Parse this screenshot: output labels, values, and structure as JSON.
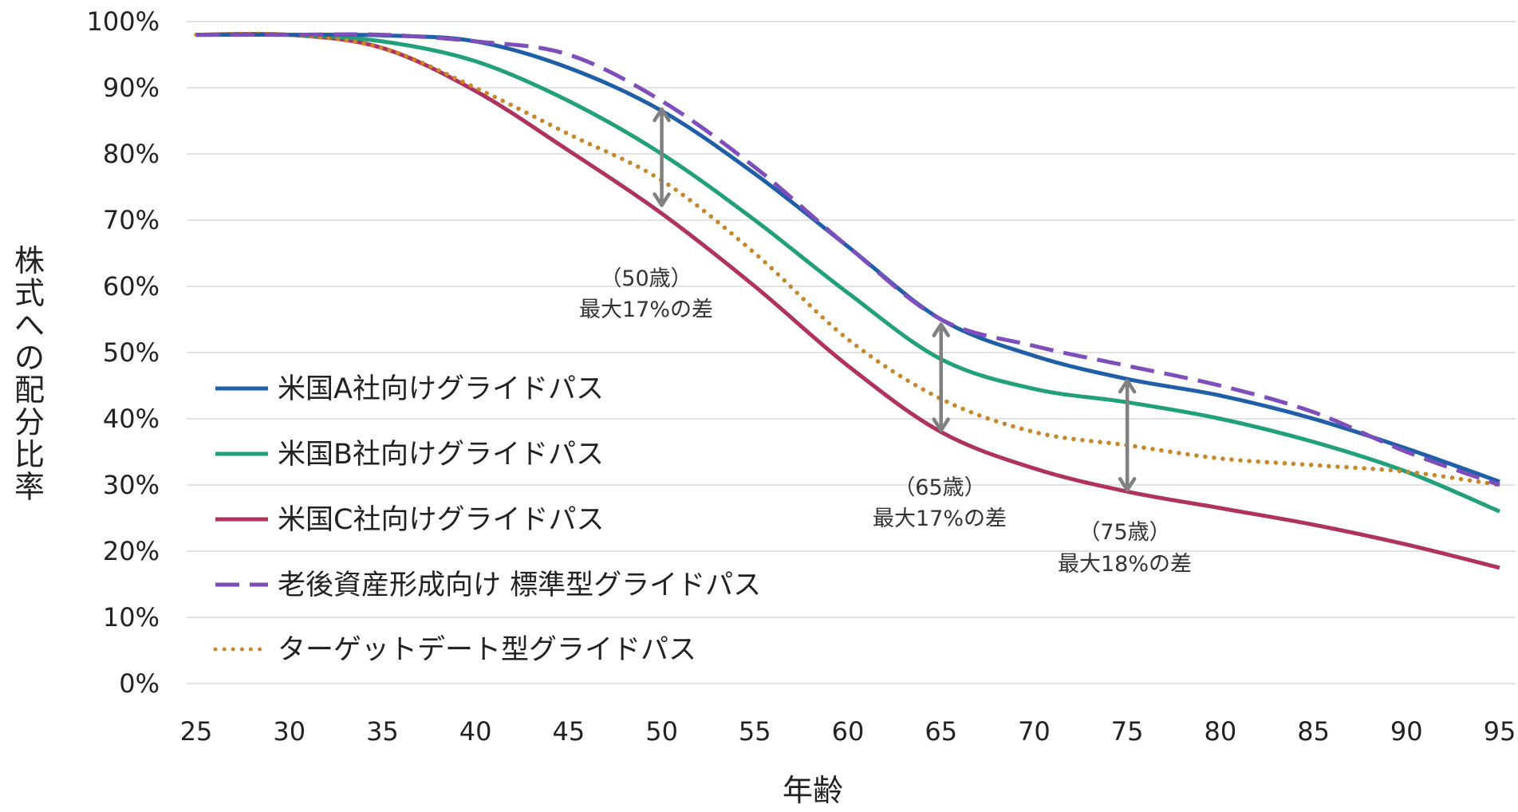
{
  "chart_data": {
    "type": "line",
    "title": "",
    "xlabel": "年齢",
    "ylabel": "株式への配分比率",
    "xlim": [
      25,
      95
    ],
    "ylim": [
      0,
      100
    ],
    "x_ticks": [
      "25",
      "30",
      "35",
      "40",
      "45",
      "50",
      "55",
      "60",
      "65",
      "70",
      "75",
      "80",
      "85",
      "90",
      "95"
    ],
    "y_ticks": [
      "0%",
      "10%",
      "20%",
      "30%",
      "40%",
      "50%",
      "60%",
      "70%",
      "80%",
      "90%",
      "100%"
    ],
    "grid": "horizontal",
    "legend_position": "bottom-left",
    "x": [
      25,
      30,
      35,
      40,
      45,
      50,
      55,
      60,
      65,
      70,
      75,
      80,
      85,
      90,
      95
    ],
    "series": [
      {
        "name": "米国A社向けグライドパス",
        "color": "#1f5fa8",
        "style": "solid",
        "values": [
          98,
          98,
          97.9,
          97,
          93,
          86.5,
          77,
          66,
          55,
          49.5,
          46,
          43.5,
          40,
          35.5,
          30.5
        ]
      },
      {
        "name": "米国B社向けグライドパス",
        "color": "#22a07c",
        "style": "solid",
        "values": [
          98,
          98,
          97,
          94,
          88,
          80,
          70,
          59,
          49,
          44.5,
          42.5,
          40,
          36.5,
          32,
          26
        ]
      },
      {
        "name": "米国C社向けグライドパス",
        "color": "#b0325f",
        "style": "solid",
        "values": [
          98,
          98,
          96,
          89.5,
          80.5,
          71,
          60,
          48,
          38,
          32.5,
          29,
          26.5,
          24,
          21,
          17.5
        ]
      },
      {
        "name": "老後資産形成向け 標準型グライドパス",
        "color": "#7e4ebc",
        "style": "dashed",
        "values": [
          98,
          98,
          98,
          97,
          95,
          88,
          78,
          66,
          55,
          51,
          48,
          45,
          41,
          35,
          30
        ]
      },
      {
        "name": "ターゲットデート型グライドパス",
        "color": "#c9872a",
        "style": "dotted",
        "values": [
          98,
          98,
          96,
          90,
          83,
          76,
          65,
          52,
          43,
          38,
          36,
          34,
          33,
          32,
          30
        ]
      }
    ],
    "annotations": [
      {
        "age_label": "（50歳）",
        "text": "最大17%の差",
        "x": 50,
        "y_top": 87,
        "y_bottom": 72
      },
      {
        "age_label": "（65歳）",
        "text": "最大17%の差",
        "x": 65,
        "y_top": 54.5,
        "y_bottom": 38
      },
      {
        "age_label": "（75歳）",
        "text": "最大18%の差",
        "x": 75,
        "y_top": 46,
        "y_bottom": 29
      }
    ]
  }
}
